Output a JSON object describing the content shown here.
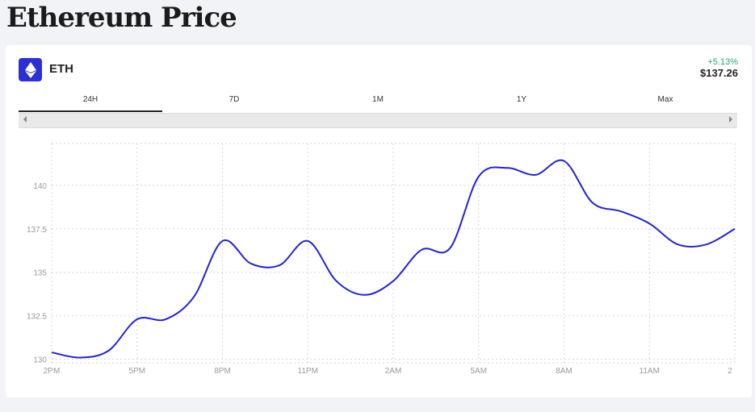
{
  "page": {
    "title": "Ethereum Price"
  },
  "coin": {
    "symbol": "ETH",
    "logo_icon": "ethereum-icon",
    "logo_color": "#2b2fd6",
    "change": "+5.13%",
    "change_color": "#2aa77a",
    "price": "$137.26"
  },
  "tabs": [
    {
      "label": "24H",
      "active": true
    },
    {
      "label": "7D",
      "active": false
    },
    {
      "label": "1M",
      "active": false
    },
    {
      "label": "1Y",
      "active": false
    },
    {
      "label": "Max",
      "active": false
    }
  ],
  "chart_data": {
    "type": "line",
    "title": "",
    "xlabel": "",
    "ylabel": "",
    "line_color": "#2222dd",
    "grid": true,
    "x_ticks": [
      "2PM",
      "5PM",
      "8PM",
      "11PM",
      "2AM",
      "5AM",
      "8AM",
      "11AM",
      "2"
    ],
    "y_ticks": [
      "130",
      "132.5",
      "135",
      "137.5",
      "140"
    ],
    "ylim": [
      129.8,
      142.4
    ],
    "x": [
      "2PM",
      "3PM",
      "4PM",
      "5PM",
      "6PM",
      "7PM",
      "8PM",
      "9PM",
      "10PM",
      "11PM",
      "12AM",
      "1AM",
      "2AM",
      "3AM",
      "4AM",
      "5AM",
      "6AM",
      "7AM",
      "8AM",
      "9AM",
      "10AM",
      "11AM",
      "12PM",
      "1PM",
      "2PM"
    ],
    "values": [
      130.4,
      130.1,
      130.5,
      132.3,
      132.3,
      133.6,
      136.8,
      135.5,
      135.4,
      136.8,
      134.5,
      133.7,
      134.5,
      136.3,
      136.4,
      140.5,
      141.0,
      140.6,
      141.4,
      139.0,
      138.5,
      137.8,
      136.6,
      136.6,
      137.5
    ]
  }
}
